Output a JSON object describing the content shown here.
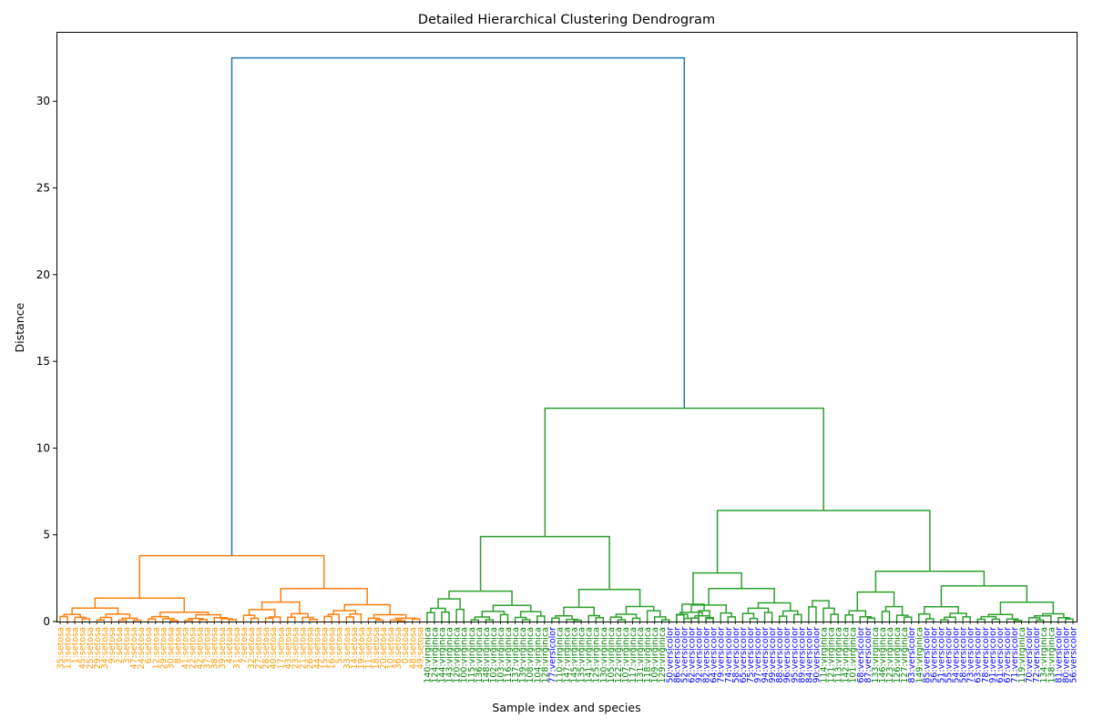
{
  "chart_data": {
    "type": "dendrogram",
    "title": "Detailed Hierarchical Clustering Dendrogram",
    "xlabel": "Sample index and species",
    "ylabel": "Distance",
    "ylim": [
      0,
      34
    ],
    "yticks": [
      0,
      5,
      10,
      15,
      20,
      25,
      30
    ],
    "colors": {
      "link_setosa": "#ff7f0e",
      "link_rest": "#2ca02c",
      "link_root": "#1f77b4",
      "label_setosa": "#ff9900",
      "label_virginica": "#008000",
      "label_versicolor": "#0000ff"
    },
    "leaves": [
      {
        "label": "35:setosa",
        "species": "setosa"
      },
      {
        "label": "13:setosa",
        "species": "setosa"
      },
      {
        "label": "1:setosa",
        "species": "setosa"
      },
      {
        "label": "45:setosa",
        "species": "setosa"
      },
      {
        "label": "25:setosa",
        "species": "setosa"
      },
      {
        "label": "29:setosa",
        "species": "setosa"
      },
      {
        "label": "34:setosa",
        "species": "setosa"
      },
      {
        "label": "9:setosa",
        "species": "setosa"
      },
      {
        "label": "2:setosa",
        "species": "setosa"
      },
      {
        "label": "3:setosa",
        "species": "setosa"
      },
      {
        "label": "47:setosa",
        "species": "setosa"
      },
      {
        "label": "24:setosa",
        "species": "setosa"
      },
      {
        "label": "6:setosa",
        "species": "setosa"
      },
      {
        "label": "12:setosa",
        "species": "setosa"
      },
      {
        "label": "29:setosa",
        "species": "setosa"
      },
      {
        "label": "30:setosa",
        "species": "setosa"
      },
      {
        "label": "8:setosa",
        "species": "setosa"
      },
      {
        "label": "41:setosa",
        "species": "setosa"
      },
      {
        "label": "22:setosa",
        "species": "setosa"
      },
      {
        "label": "42:setosa",
        "species": "setosa"
      },
      {
        "label": "37:setosa",
        "species": "setosa"
      },
      {
        "label": "38:setosa",
        "species": "setosa"
      },
      {
        "label": "39:setosa",
        "species": "setosa"
      },
      {
        "label": "4:setosa",
        "species": "setosa"
      },
      {
        "label": "31:setosa",
        "species": "setosa"
      },
      {
        "label": "7:setosa",
        "species": "setosa"
      },
      {
        "label": "32:setosa",
        "species": "setosa"
      },
      {
        "label": "27:setosa",
        "species": "setosa"
      },
      {
        "label": "28:setosa",
        "species": "setosa"
      },
      {
        "label": "40:setosa",
        "species": "setosa"
      },
      {
        "label": "17:setosa",
        "species": "setosa"
      },
      {
        "label": "43:setosa",
        "species": "setosa"
      },
      {
        "label": "23:setosa",
        "species": "setosa"
      },
      {
        "label": "21:setosa",
        "species": "setosa"
      },
      {
        "label": "26:setosa",
        "species": "setosa"
      },
      {
        "label": "44:setosa",
        "species": "setosa"
      },
      {
        "label": "15:setosa",
        "species": "setosa"
      },
      {
        "label": "16:setosa",
        "species": "setosa"
      },
      {
        "label": "5:setosa",
        "species": "setosa"
      },
      {
        "label": "33:setosa",
        "species": "setosa"
      },
      {
        "label": "14:setosa",
        "species": "setosa"
      },
      {
        "label": "19:setosa",
        "species": "setosa"
      },
      {
        "label": "11:setosa",
        "species": "setosa"
      },
      {
        "label": "18:setosa",
        "species": "setosa"
      },
      {
        "label": "20:setosa",
        "species": "setosa"
      },
      {
        "label": "10:setosa",
        "species": "setosa"
      },
      {
        "label": "36:setosa",
        "species": "setosa"
      },
      {
        "label": "0:setosa",
        "species": "setosa"
      },
      {
        "label": "48:setosa",
        "species": "setosa"
      },
      {
        "label": "49:setosa",
        "species": "setosa"
      },
      {
        "label": "140:virginica",
        "species": "virginica"
      },
      {
        "label": "124:virginica",
        "species": "virginica"
      },
      {
        "label": "144:virginica",
        "species": "virginica"
      },
      {
        "label": "143:virginica",
        "species": "virginica"
      },
      {
        "label": "120:virginica",
        "species": "virginica"
      },
      {
        "label": "100:virginica",
        "species": "virginica"
      },
      {
        "label": "115:virginica",
        "species": "virginica"
      },
      {
        "label": "136:virginica",
        "species": "virginica"
      },
      {
        "label": "148:virginica",
        "species": "virginica"
      },
      {
        "label": "102:virginica",
        "species": "virginica"
      },
      {
        "label": "103:virginica",
        "species": "virginica"
      },
      {
        "label": "116:virginica",
        "species": "virginica"
      },
      {
        "label": "137:virginica",
        "species": "virginica"
      },
      {
        "label": "139:virginica",
        "species": "virginica"
      },
      {
        "label": "108:virginica",
        "species": "virginica"
      },
      {
        "label": "104:virginica",
        "species": "virginica"
      },
      {
        "label": "128:virginica",
        "species": "virginica"
      },
      {
        "label": "77:versicolor",
        "species": "versicolor"
      },
      {
        "label": "110:virginica",
        "species": "virginica"
      },
      {
        "label": "147:virginica",
        "species": "virginica"
      },
      {
        "label": "145:virginica",
        "species": "virginica"
      },
      {
        "label": "135:virginica",
        "species": "virginica"
      },
      {
        "label": "141:virginica",
        "species": "virginica"
      },
      {
        "label": "125:virginica",
        "species": "virginica"
      },
      {
        "label": "130:virginica",
        "species": "virginica"
      },
      {
        "label": "105:virginica",
        "species": "virginica"
      },
      {
        "label": "122:virginica",
        "species": "virginica"
      },
      {
        "label": "107:virginica",
        "species": "virginica"
      },
      {
        "label": "117:virginica",
        "species": "virginica"
      },
      {
        "label": "131:virginica",
        "species": "virginica"
      },
      {
        "label": "118:virginica",
        "species": "virginica"
      },
      {
        "label": "109:virginica",
        "species": "virginica"
      },
      {
        "label": "129:virginica",
        "species": "virginica"
      },
      {
        "label": "50:versicolor",
        "species": "versicolor"
      },
      {
        "label": "86:versicolor",
        "species": "versicolor"
      },
      {
        "label": "52:versicolor",
        "species": "versicolor"
      },
      {
        "label": "62:versicolor",
        "species": "versicolor"
      },
      {
        "label": "92:versicolor",
        "species": "versicolor"
      },
      {
        "label": "82:versicolor",
        "species": "versicolor"
      },
      {
        "label": "64:versicolor",
        "species": "versicolor"
      },
      {
        "label": "79:versicolor",
        "species": "versicolor"
      },
      {
        "label": "74:versicolor",
        "species": "versicolor"
      },
      {
        "label": "58:versicolor",
        "species": "versicolor"
      },
      {
        "label": "65:versicolor",
        "species": "versicolor"
      },
      {
        "label": "75:versicolor",
        "species": "versicolor"
      },
      {
        "label": "97:versicolor",
        "species": "versicolor"
      },
      {
        "label": "94:versicolor",
        "species": "versicolor"
      },
      {
        "label": "99:versicolor",
        "species": "versicolor"
      },
      {
        "label": "88:versicolor",
        "species": "versicolor"
      },
      {
        "label": "96:versicolor",
        "species": "versicolor"
      },
      {
        "label": "95:versicolor",
        "species": "versicolor"
      },
      {
        "label": "89:versicolor",
        "species": "versicolor"
      },
      {
        "label": "84:versicolor",
        "species": "versicolor"
      },
      {
        "label": "90:versicolor",
        "species": "versicolor"
      },
      {
        "label": "114:virginica",
        "species": "virginica"
      },
      {
        "label": "121:virginica",
        "species": "virginica"
      },
      {
        "label": "113:virginica",
        "species": "virginica"
      },
      {
        "label": "142:virginica",
        "species": "virginica"
      },
      {
        "label": "101:virginica",
        "species": "virginica"
      },
      {
        "label": "68:versicolor",
        "species": "versicolor"
      },
      {
        "label": "87:versicolor",
        "species": "versicolor"
      },
      {
        "label": "133:virginica",
        "species": "virginica"
      },
      {
        "label": "146:virginica",
        "species": "virginica"
      },
      {
        "label": "123:virginica",
        "species": "virginica"
      },
      {
        "label": "126:virginica",
        "species": "virginica"
      },
      {
        "label": "127:virginica",
        "species": "virginica"
      },
      {
        "label": "83:versicolor",
        "species": "versicolor"
      },
      {
        "label": "149:virginica",
        "species": "virginica"
      },
      {
        "label": "85:versicolor",
        "species": "versicolor"
      },
      {
        "label": "56:versicolor",
        "species": "versicolor"
      },
      {
        "label": "51:versicolor",
        "species": "versicolor"
      },
      {
        "label": "55:versicolor",
        "species": "versicolor"
      },
      {
        "label": "54:versicolor",
        "species": "versicolor"
      },
      {
        "label": "58:versicolor",
        "species": "versicolor"
      },
      {
        "label": "73:versicolor",
        "species": "versicolor"
      },
      {
        "label": "63:versicolor",
        "species": "versicolor"
      },
      {
        "label": "78:versicolor",
        "species": "versicolor"
      },
      {
        "label": "91:versicolor",
        "species": "versicolor"
      },
      {
        "label": "61:versicolor",
        "species": "versicolor"
      },
      {
        "label": "67:versicolor",
        "species": "versicolor"
      },
      {
        "label": "71:versicolor",
        "species": "versicolor"
      },
      {
        "label": "119:virginica",
        "species": "virginica"
      },
      {
        "label": "70:versicolor",
        "species": "versicolor"
      },
      {
        "label": "72:versicolor",
        "species": "versicolor"
      },
      {
        "label": "134:virginica",
        "species": "virginica"
      },
      {
        "label": "138:virginica",
        "species": "virginica"
      },
      {
        "label": "81:versicolor",
        "species": "versicolor"
      },
      {
        "label": "80:versicolor",
        "species": "versicolor"
      },
      {
        "label": "56:versicolor",
        "species": "versicolor"
      }
    ],
    "main_merges": [
      {
        "distance": 32.5,
        "left": "setosa cluster",
        "right": "versicolor/virginica cluster"
      },
      {
        "distance": 12.3,
        "left": "virginica-dominant cluster",
        "right": "mixed cluster"
      },
      {
        "distance": 6.4,
        "left": "versicolor-dominant group",
        "right": "mixed group"
      },
      {
        "distance": 4.9,
        "left": "virginica group A",
        "right": "virginica group B"
      },
      {
        "distance": 3.8,
        "left": "setosa group A",
        "right": "setosa group B"
      },
      {
        "distance": 2.8,
        "left": "versicolor subgroup",
        "right": "versicolor subgroup"
      },
      {
        "distance": 2.9,
        "left": "mixed subgroup",
        "right": "versicolor subgroup"
      }
    ]
  }
}
